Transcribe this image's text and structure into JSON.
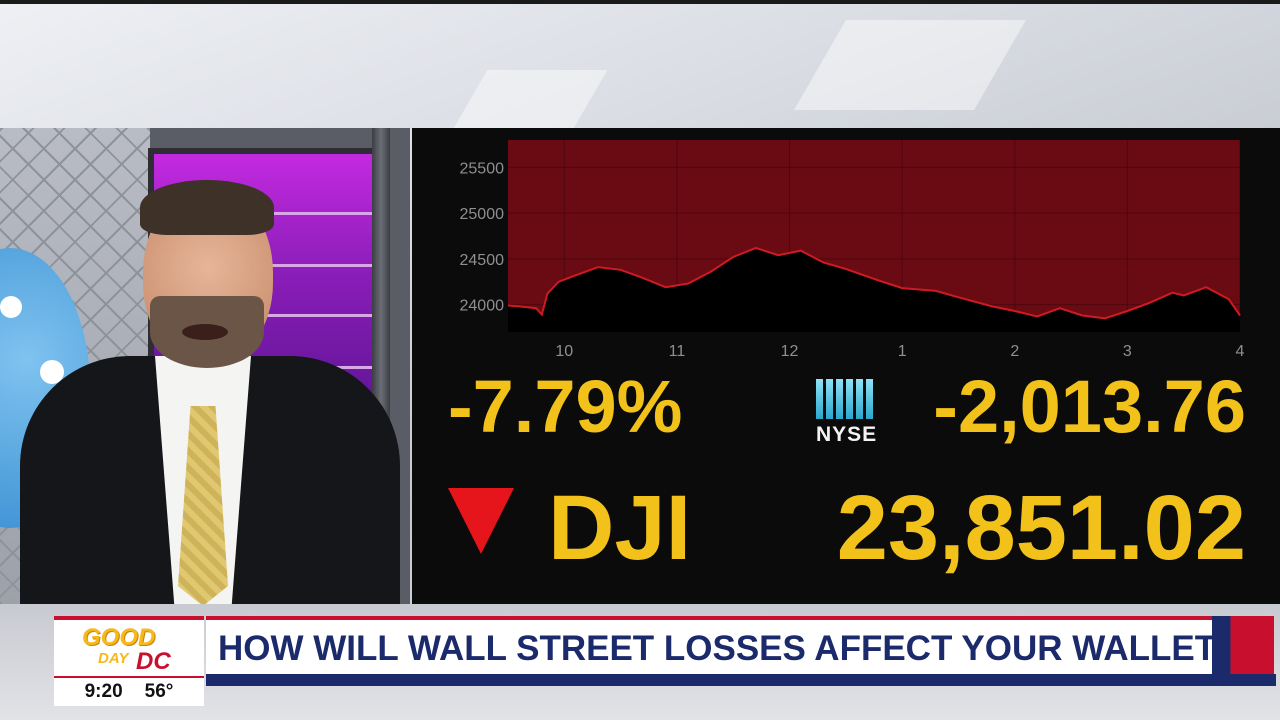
{
  "chart_data": {
    "type": "area",
    "x_tick_labels": [
      "10",
      "11",
      "12",
      "1",
      "2",
      "3",
      "4"
    ],
    "y_tick_labels": [
      "25500",
      "25000",
      "24500",
      "24000"
    ],
    "ylim": [
      23700,
      25800
    ],
    "x_range_hours": [
      9.5,
      16.0
    ],
    "grid": true,
    "series": [
      {
        "values": [
          [
            9.5,
            23990
          ],
          [
            9.6,
            23980
          ],
          [
            9.75,
            23960
          ],
          [
            9.8,
            23890
          ],
          [
            9.85,
            24120
          ],
          [
            9.95,
            24250
          ],
          [
            10.1,
            24320
          ],
          [
            10.3,
            24410
          ],
          [
            10.5,
            24380
          ],
          [
            10.7,
            24290
          ],
          [
            10.9,
            24190
          ],
          [
            11.1,
            24230
          ],
          [
            11.3,
            24360
          ],
          [
            11.5,
            24520
          ],
          [
            11.7,
            24620
          ],
          [
            11.9,
            24540
          ],
          [
            12.1,
            24590
          ],
          [
            12.3,
            24460
          ],
          [
            12.5,
            24390
          ],
          [
            12.8,
            24260
          ],
          [
            13.0,
            24180
          ],
          [
            13.3,
            24150
          ],
          [
            13.5,
            24080
          ],
          [
            13.8,
            23980
          ],
          [
            14.0,
            23930
          ],
          [
            14.2,
            23870
          ],
          [
            14.4,
            23960
          ],
          [
            14.6,
            23880
          ],
          [
            14.8,
            23850
          ],
          [
            15.0,
            23930
          ],
          [
            15.2,
            24020
          ],
          [
            15.4,
            24130
          ],
          [
            15.5,
            24100
          ],
          [
            15.7,
            24190
          ],
          [
            15.9,
            24060
          ],
          [
            16.0,
            23880
          ]
        ]
      }
    ],
    "colors": {
      "fill_above": "#6a0a12",
      "fill_below": "#000000",
      "line": "#d01a22",
      "grid": "#2a2a2a",
      "tick": "#8f8f8f"
    }
  },
  "market": {
    "pct_change": "-7.79%",
    "point_change": "-2,013.76",
    "index_name": "DJI",
    "index_value": "23,851.02",
    "exchange_label": "NYSE",
    "direction": "down",
    "colors": {
      "value": "#f2c21b",
      "arrow": "#e5151b"
    }
  },
  "lower_third": {
    "headline": "HOW WILL WALL STREET LOSSES AFFECT YOUR WALLET?",
    "logo_good": "GOOD",
    "logo_day": "DAY",
    "logo_dc": "DC",
    "time": "9:20",
    "temperature": "56°",
    "colors": {
      "navy": "#1b2a6b",
      "red": "#c8102e",
      "gold": "#f6b81c"
    }
  }
}
